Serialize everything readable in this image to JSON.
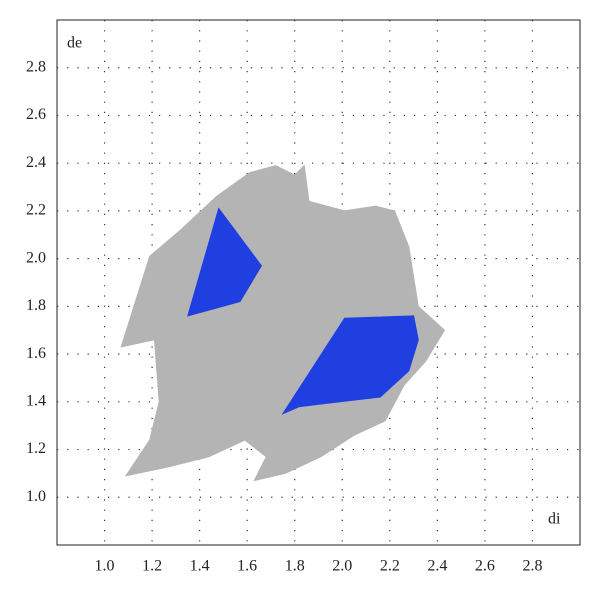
{
  "chart_data": {
    "type": "area",
    "x_label": "di",
    "y_label": "de",
    "xlim": [
      0.8,
      3.0
    ],
    "ylim": [
      0.8,
      3.0
    ],
    "xticks": [
      {
        "value": 1,
        "label": "1.0"
      },
      1.2,
      1.4,
      1.6,
      1.8,
      {
        "value": 2,
        "label": "2.0"
      },
      2.2,
      2.4,
      2.6,
      2.8
    ],
    "yticks": [
      {
        "value": 1,
        "label": "1.0"
      },
      1.2,
      1.4,
      1.6,
      1.8,
      {
        "value": 2,
        "label": "2.0"
      },
      2.2,
      2.4,
      2.6,
      2.8
    ],
    "grid": true,
    "series": [
      {
        "color": "#b4b4b4",
        "x": [
          1.07,
          1.13,
          1.19,
          1.32,
          1.47,
          1.61,
          1.72,
          1.8,
          1.84,
          1.86,
          2.01,
          2.14,
          2.22,
          2.28,
          2.32,
          2.43,
          2.35,
          2.26,
          2.18,
          2.05,
          1.91,
          1.76,
          1.63,
          1.68,
          1.59,
          1.44,
          1.28,
          1.09,
          1.19,
          1.23,
          1.21
        ],
        "values": [
          1.63,
          1.82,
          2.01,
          2.12,
          2.26,
          2.36,
          2.39,
          2.35,
          2.39,
          2.24,
          2.2,
          2.22,
          2.2,
          2.05,
          1.8,
          1.7,
          1.57,
          1.47,
          1.32,
          1.26,
          1.17,
          1.1,
          1.07,
          1.17,
          1.24,
          1.17,
          1.13,
          1.09,
          1.24,
          1.4,
          1.66
        ]
      },
      {
        "color": "#1f3fe0",
        "x": [
          1.35,
          1.48,
          1.66,
          1.57
        ],
        "values": [
          1.76,
          2.21,
          1.97,
          1.82
        ]
      },
      {
        "color": "#1f3fe0",
        "x": [
          1.75,
          2.01,
          2.3,
          2.32,
          2.28,
          2.16,
          1.99,
          1.82
        ],
        "values": [
          1.35,
          1.75,
          1.76,
          1.66,
          1.53,
          1.42,
          1.4,
          1.38
        ]
      }
    ]
  }
}
